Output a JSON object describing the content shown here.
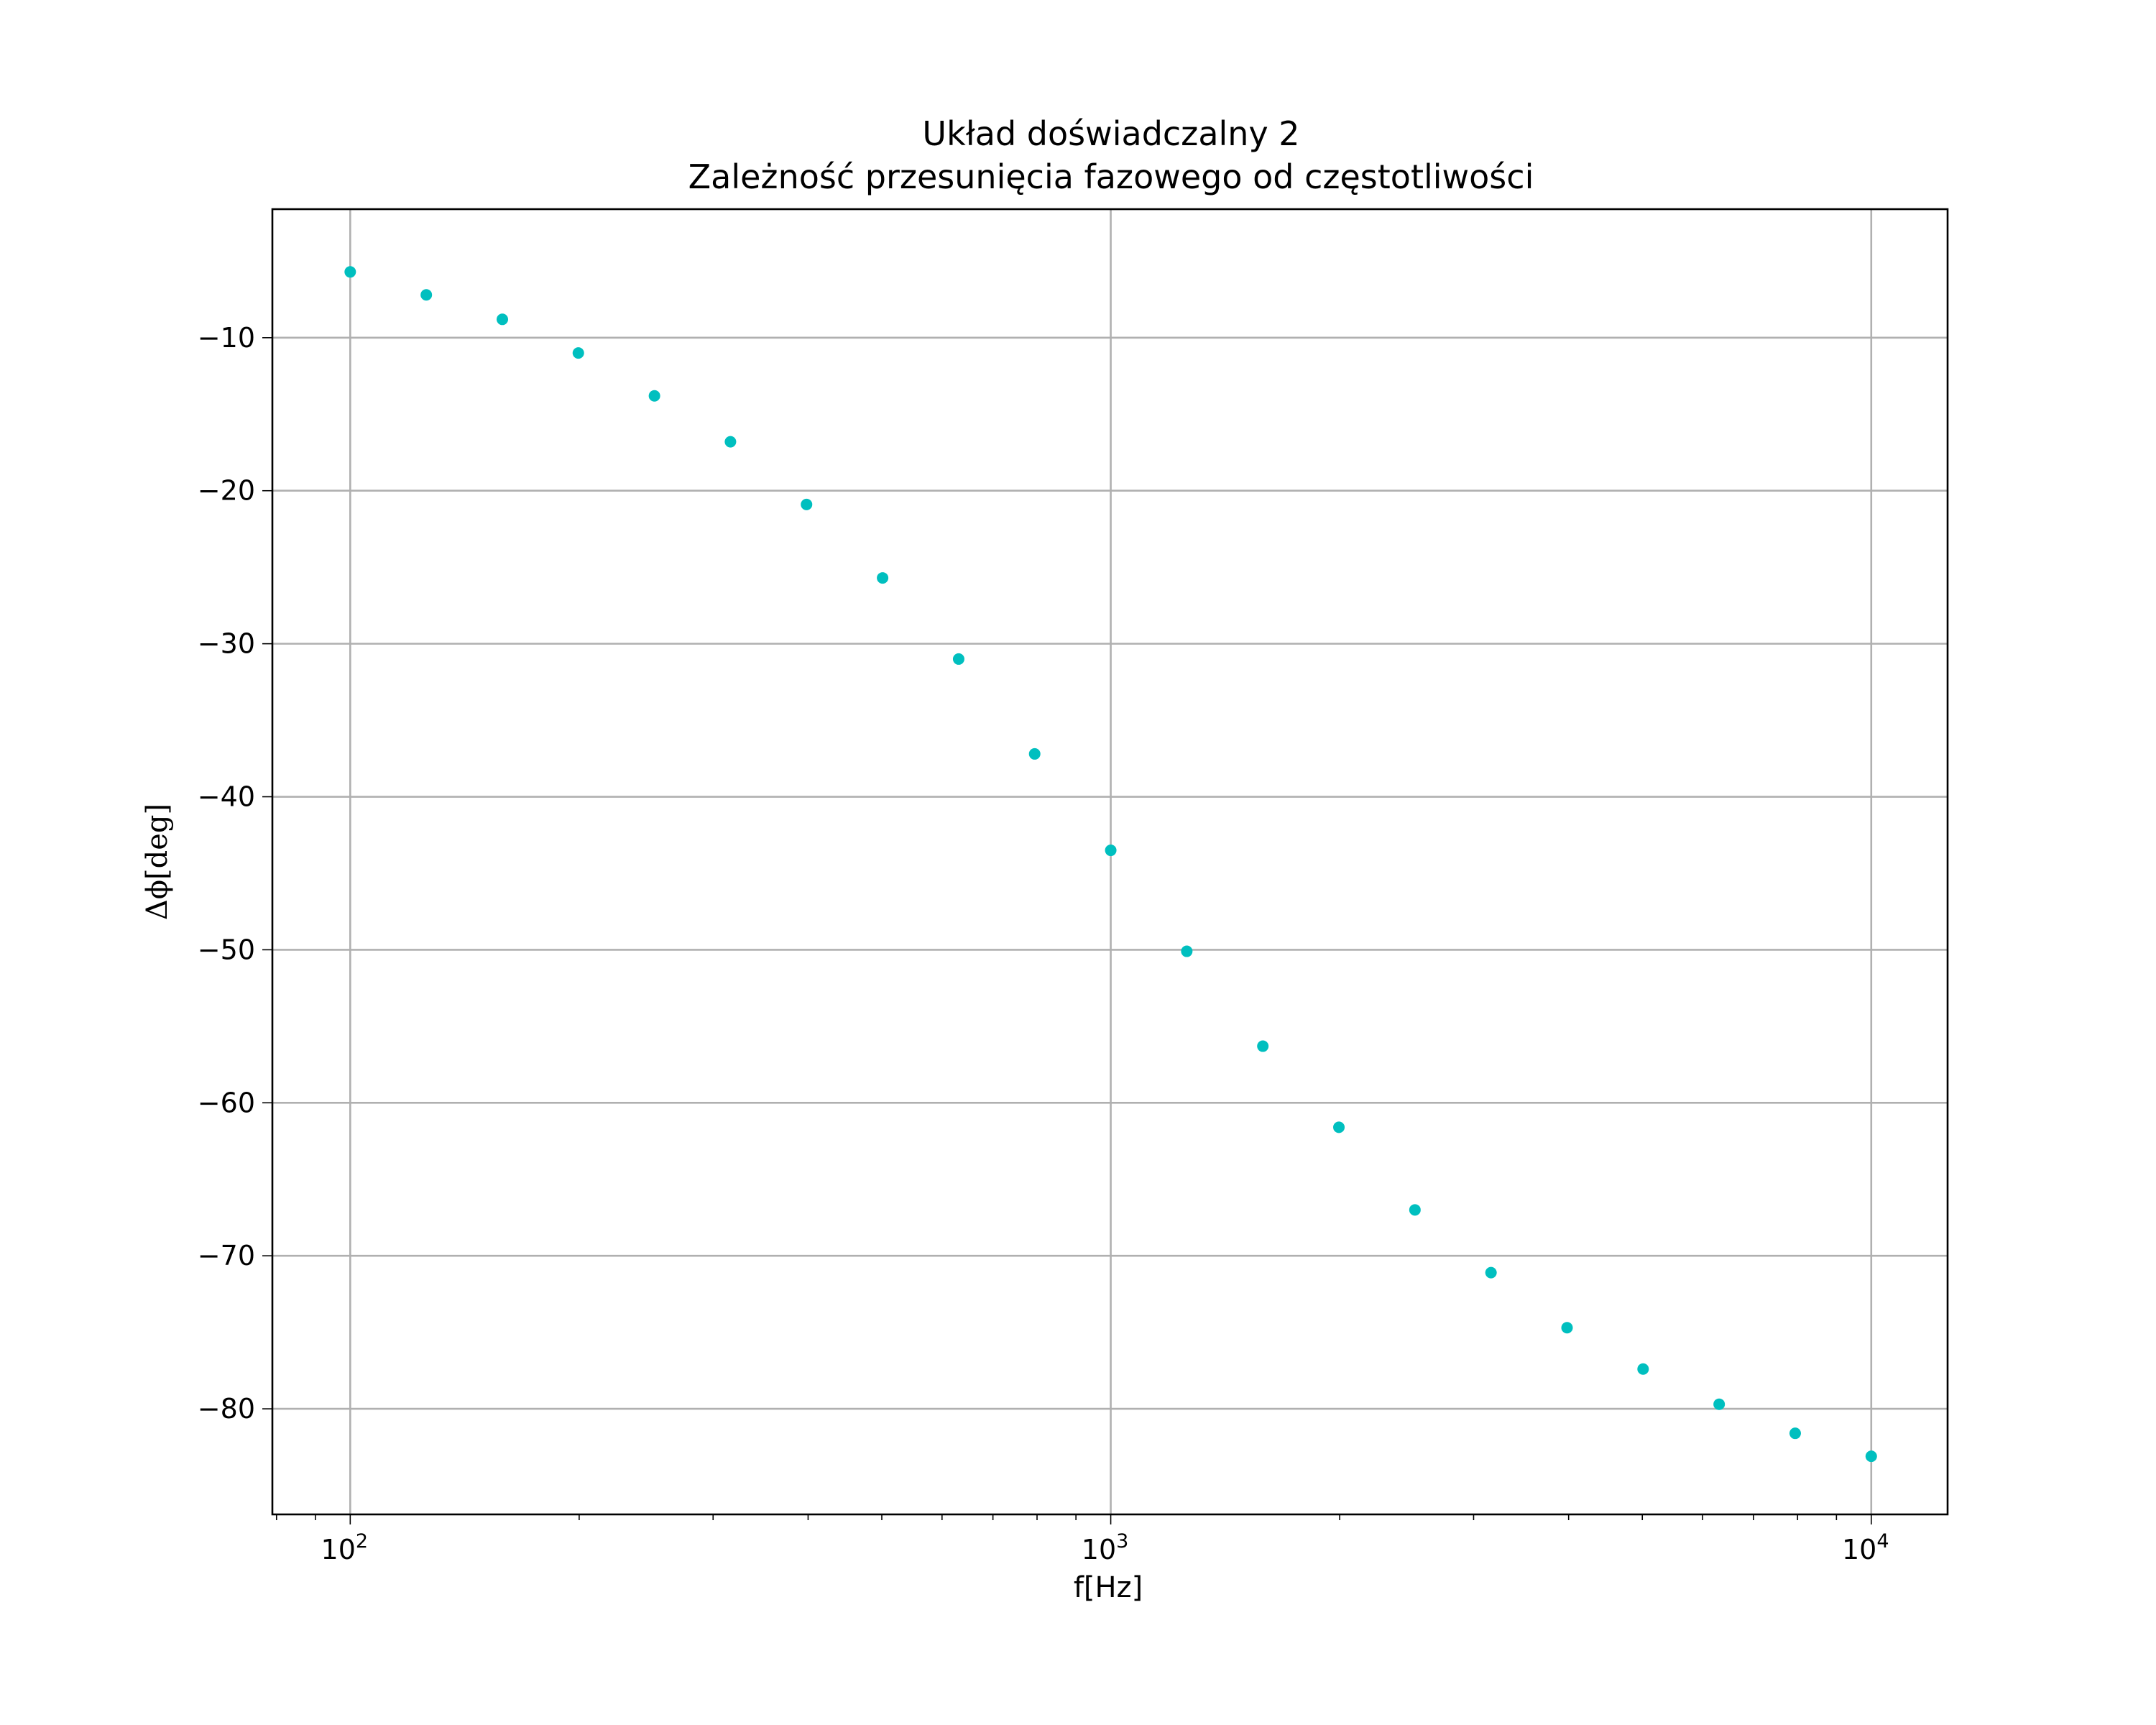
{
  "chart_data": {
    "type": "scatter",
    "title": "Układ doświadczalny 2",
    "subtitle": "Zależność przesunięcia fazowego od częstotliwości",
    "xlabel": "f[Hz]",
    "ylabel": "Δϕ[deg]",
    "xscale": "log",
    "xlim": [
      79,
      12600
    ],
    "ylim": [
      -86.9,
      -1.6
    ],
    "grid": true,
    "marker_color": "#00bfbf",
    "x_ticks": [
      {
        "value": 100,
        "base": "10",
        "exp": "2"
      },
      {
        "value": 1000,
        "base": "10",
        "exp": "3"
      },
      {
        "value": 10000,
        "base": "10",
        "exp": "4"
      }
    ],
    "y_ticks": [
      {
        "value": -10,
        "label": "−10"
      },
      {
        "value": -20,
        "label": "−20"
      },
      {
        "value": -30,
        "label": "−30"
      },
      {
        "value": -40,
        "label": "−40"
      },
      {
        "value": -50,
        "label": "−50"
      },
      {
        "value": -60,
        "label": "−60"
      },
      {
        "value": -70,
        "label": "−70"
      },
      {
        "value": -80,
        "label": "−80"
      }
    ],
    "x": [
      100,
      125.9,
      158.5,
      199.5,
      251.2,
      316.2,
      398.1,
      501.2,
      631.0,
      794.3,
      1000,
      1258.9,
      1584.9,
      1995.3,
      2511.9,
      3162.3,
      3981.1,
      5011.9,
      6309.6,
      7943.3,
      10000
    ],
    "y": [
      -5.7,
      -7.2,
      -8.8,
      -11.0,
      -13.8,
      -16.8,
      -20.9,
      -25.7,
      -31.0,
      -37.2,
      -43.5,
      -50.1,
      -56.3,
      -61.6,
      -67.0,
      -71.1,
      -74.7,
      -77.4,
      -79.7,
      -81.6,
      -83.1
    ]
  }
}
